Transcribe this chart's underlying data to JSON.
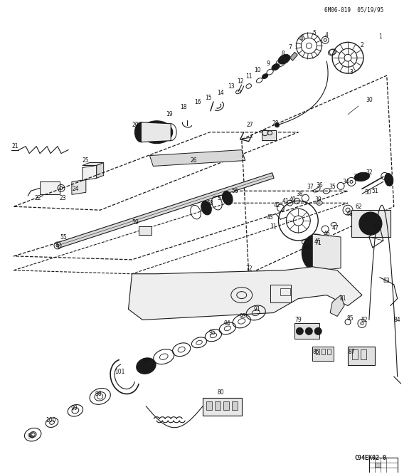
{
  "header": "6M06-019  05/19/95",
  "footer": "C94EK02-0",
  "bg": "#ffffff",
  "lc": "#1a1a1a",
  "fig_w": 5.75,
  "fig_h": 6.66,
  "dpi": 100
}
